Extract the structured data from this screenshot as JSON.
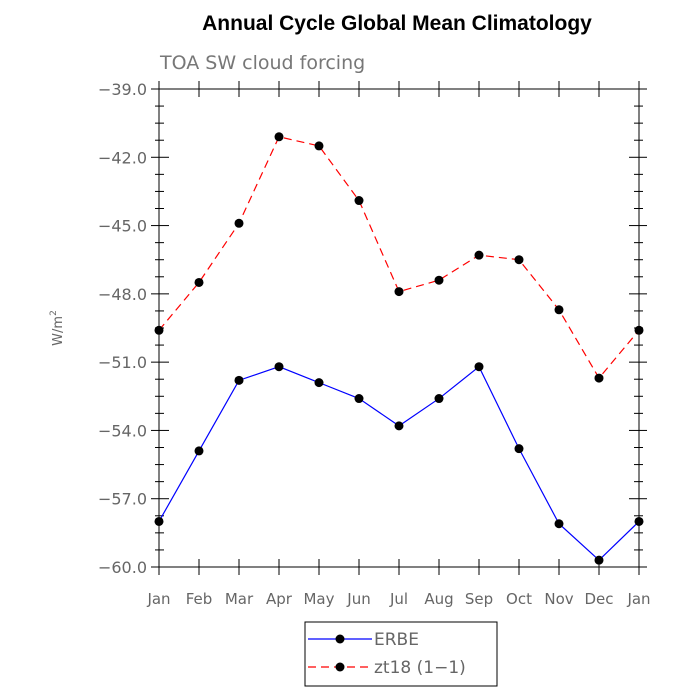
{
  "chart_data": {
    "type": "line",
    "title": "Annual Cycle Global Mean Climatology",
    "subtitle": "TOA SW cloud forcing",
    "xlabel": "",
    "ylabel": "W/m",
    "ylabel_sup": "2",
    "ylim": [
      -60.0,
      -39.0
    ],
    "yticks": [
      "-60.0",
      "-57.0",
      "-54.0",
      "-51.0",
      "-48.0",
      "-45.0",
      "-42.0",
      "-39.0"
    ],
    "categories": [
      "Jan",
      "Feb",
      "Mar",
      "Apr",
      "May",
      "Jun",
      "Jul",
      "Aug",
      "Sep",
      "Oct",
      "Nov",
      "Dec",
      "Jan"
    ],
    "grid": false,
    "legend_position": "bottom",
    "series": [
      {
        "name": "ERBE",
        "color": "#0000ff",
        "dash": "solid",
        "values": [
          -58.0,
          -54.9,
          -51.8,
          -51.2,
          -51.9,
          -52.6,
          -53.8,
          -52.6,
          -51.2,
          -54.8,
          -58.1,
          -59.7,
          -58.0
        ]
      },
      {
        "name": "zt18 (1-1)",
        "color": "#ff0000",
        "dash": "dashed",
        "values": [
          -49.6,
          -47.5,
          -44.9,
          -41.1,
          -41.5,
          -43.9,
          -47.9,
          -47.4,
          -46.3,
          -46.5,
          -48.7,
          -51.7,
          -49.6
        ]
      }
    ]
  }
}
